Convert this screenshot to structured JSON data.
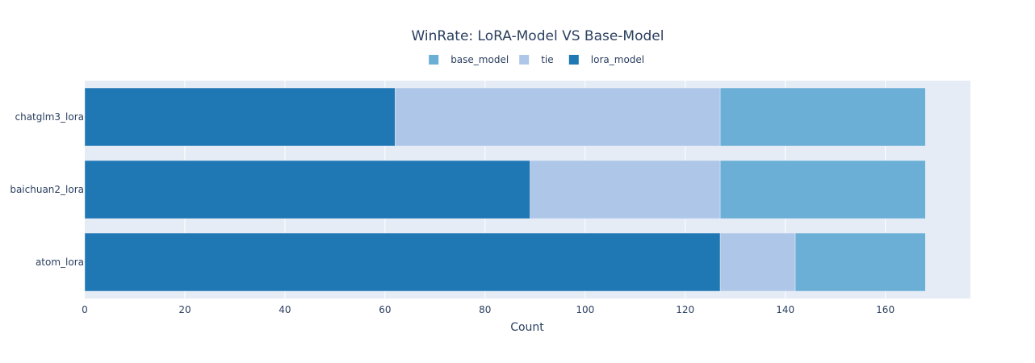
{
  "chart_data": {
    "type": "bar",
    "orientation": "horizontal",
    "barmode": "stack",
    "title": "WinRate: LoRA-Model VS Base-Model",
    "xlabel": "Count",
    "ylabel": "",
    "xlim": [
      0,
      177
    ],
    "x_ticks": [
      0,
      20,
      40,
      60,
      80,
      100,
      120,
      140,
      160
    ],
    "categories": [
      "atom_lora",
      "baichuan2_lora",
      "chatglm3_lora"
    ],
    "series": [
      {
        "name": "lora_model",
        "color": "#1f77b4",
        "values": [
          127,
          89,
          62
        ]
      },
      {
        "name": "tie",
        "color": "#aec7e8",
        "values": [
          15,
          38,
          65
        ]
      },
      {
        "name": "base_model",
        "color": "#6baed6",
        "values": [
          26,
          41,
          41
        ]
      }
    ],
    "legend": {
      "placement": "top-center",
      "order": [
        "base_model",
        "tie",
        "lora_model"
      ]
    },
    "grid": true,
    "plot_background": "#e5ecf6"
  }
}
